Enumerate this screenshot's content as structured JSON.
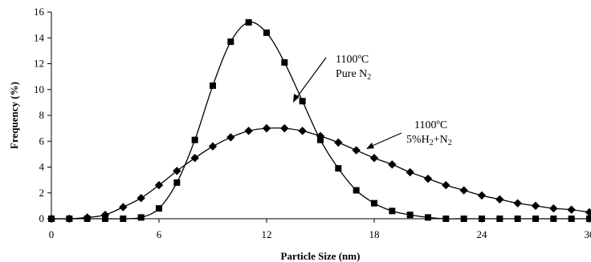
{
  "chart_data": {
    "type": "line",
    "title": "",
    "xlabel": "Particle Size (nm)",
    "ylabel": "Frequency (%)",
    "xlim": [
      0,
      30
    ],
    "ylim": [
      0,
      16
    ],
    "xticks": [
      "0",
      "6",
      "12",
      "18",
      "24",
      "30"
    ],
    "yticks": [
      "0",
      "2",
      "4",
      "6",
      "8",
      "10",
      "12",
      "14",
      "16"
    ],
    "grid": false,
    "legend": "none",
    "series": [
      {
        "marker": "square",
        "color": "#000000",
        "x": [
          0,
          1,
          2,
          3,
          4,
          5,
          6,
          7,
          8,
          9,
          10,
          11,
          12,
          13,
          14,
          15,
          16,
          17,
          18,
          19,
          20,
          21,
          22,
          23,
          24,
          25,
          26,
          27,
          28,
          29,
          30
        ],
        "y": [
          0,
          0,
          0,
          0,
          0,
          0.1,
          0.8,
          2.8,
          6.1,
          10.3,
          13.7,
          15.2,
          14.4,
          12.1,
          9.1,
          6.1,
          3.9,
          2.2,
          1.2,
          0.6,
          0.3,
          0.1,
          0,
          0,
          0,
          0,
          0,
          0,
          0,
          0,
          0
        ]
      },
      {
        "marker": "diamond",
        "color": "#000000",
        "x": [
          0,
          1,
          2,
          3,
          4,
          5,
          6,
          7,
          8,
          9,
          10,
          11,
          12,
          13,
          14,
          15,
          16,
          17,
          18,
          19,
          20,
          21,
          22,
          23,
          24,
          25,
          26,
          27,
          28,
          29,
          30
        ],
        "y": [
          0,
          0,
          0.1,
          0.3,
          0.9,
          1.6,
          2.6,
          3.7,
          4.7,
          5.6,
          6.3,
          6.8,
          7.0,
          7.0,
          6.8,
          6.4,
          5.9,
          5.3,
          4.7,
          4.2,
          3.6,
          3.1,
          2.6,
          2.2,
          1.8,
          1.5,
          1.2,
          1.0,
          0.8,
          0.7,
          0.5
        ]
      }
    ],
    "annotations": [
      {
        "line1": "1100ºC",
        "line2_pre": "Pure N",
        "line2_sub": "2",
        "line2_post": ""
      },
      {
        "line1": "1100ºC",
        "line2_pre": "5%H",
        "line2_sub": "2",
        "line2_post": "+N",
        "line2_sub2": "2"
      }
    ]
  }
}
